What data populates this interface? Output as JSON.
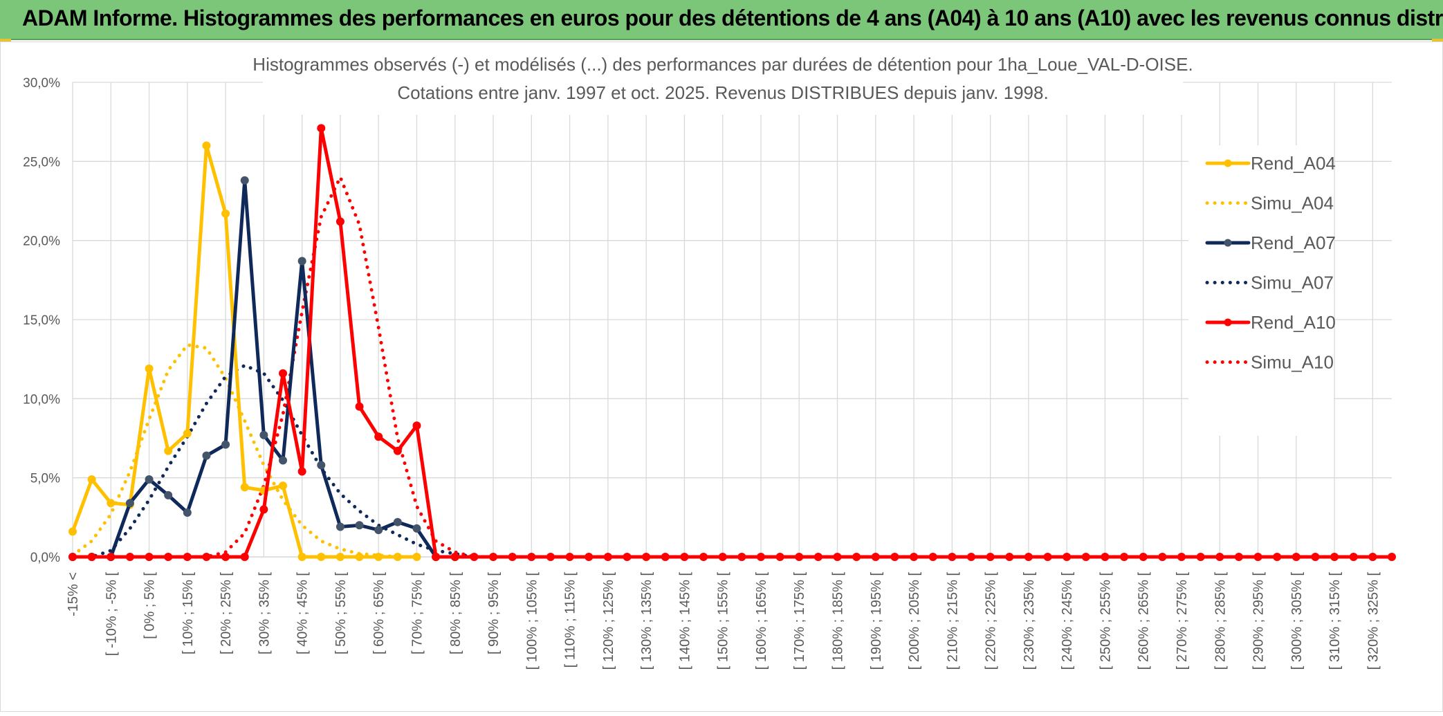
{
  "banner": {
    "title": "ADAM Informe. Histogrammes des performances en euros pour des détentions de 4 ans (A04) à 10 ans (A10) avec les revenus connus distribués"
  },
  "chart_data": {
    "type": "line",
    "title_lines": [
      "Histogrammes observés (-) et modélisés (...) des performances par durées de détention pour 1ha_Loue_VAL-D-OISE.",
      "Cotations entre janv. 1997 et oct. 2025. Revenus DISTRIBUES depuis janv. 1998."
    ],
    "ylim": [
      0,
      30
    ],
    "y_ticks": [
      "0,0%",
      "5,0%",
      "10,0%",
      "15,0%",
      "20,0%",
      "25,0%",
      "30,0%"
    ],
    "x_tick_labels": [
      "-15% <",
      "[ -10% ; -5% [",
      "[ 0% ; 5% [",
      "[ 10% ; 15% [",
      "[ 20% ; 25% [",
      "[ 30% ; 35% [",
      "[ 40% ; 45% [",
      "[ 50% ; 55% [",
      "[ 60% ; 65% [",
      "[ 70% ; 75% [",
      "[ 80% ; 85% [",
      "[ 90% ; 95% [",
      "[ 100% ; 105% [",
      "[ 110% ; 115% [",
      "[ 120% ; 125% [",
      "[ 130% ; 135% [",
      "[ 140% ; 145% [",
      "[ 150% ; 155% [",
      "[ 160% ; 165% [",
      "[ 170% ; 175% [",
      "[ 180% ; 185% [",
      "[ 190% ; 195% [",
      "[ 200% ; 205% [",
      "[ 210% ; 215% [",
      "[ 220% ; 225% [",
      "[ 230% ; 235% [",
      "[ 240% ; 245% [",
      "[ 250% ; 255% [",
      "[ 260% ; 265% [",
      "[ 270% ; 275% [",
      "[ 280% ; 285% [",
      "[ 290% ; 295% [",
      "[ 300% ; 305% [",
      "[ 310% ; 315% [",
      "[ 320% ; 325% ["
    ],
    "n_bins": 70,
    "legend_position": "right",
    "grid": true,
    "series": [
      {
        "name": "Rend_A04",
        "style": "solid",
        "markers": true,
        "color": "#ffc000",
        "values": [
          1.6,
          4.9,
          3.4,
          3.3,
          11.9,
          6.7,
          7.8,
          26.0,
          21.7,
          4.4,
          4.2,
          4.5,
          0.0,
          0.0,
          0.0,
          0.0,
          0.0,
          0.0,
          0.0
        ]
      },
      {
        "name": "Simu_A04",
        "style": "dotted",
        "markers": false,
        "color": "#ffc000",
        "values": [
          0.1,
          1.0,
          2.7,
          5.4,
          8.7,
          11.8,
          13.4,
          13.2,
          11.3,
          8.6,
          5.8,
          3.6,
          2.0,
          1.0,
          0.5,
          0.2,
          0.1,
          0.0,
          0.0
        ]
      },
      {
        "name": "Rend_A07",
        "style": "solid",
        "markers": true,
        "color": "#0f2a5a",
        "values": [
          0.0,
          0.0,
          0.0,
          3.4,
          4.9,
          3.9,
          2.8,
          6.4,
          7.1,
          23.8,
          7.7,
          6.1,
          18.7,
          5.8,
          1.9,
          2.0,
          1.7,
          2.2,
          1.8,
          0.0,
          0.0
        ]
      },
      {
        "name": "Simu_A07",
        "style": "dotted",
        "markers": false,
        "color": "#0f2a5a",
        "values": [
          0.0,
          0.0,
          0.4,
          1.8,
          3.6,
          5.7,
          7.6,
          9.7,
          11.4,
          12.1,
          11.6,
          9.9,
          7.7,
          5.6,
          4.0,
          2.9,
          2.0,
          1.4,
          0.8,
          0.4,
          0.2,
          0.0
        ]
      },
      {
        "name": "Rend_A10",
        "style": "solid",
        "markers": true,
        "color": "#ff0000",
        "values": [
          0.0,
          0.0,
          0.0,
          0.0,
          0.0,
          0.0,
          0.0,
          0.0,
          0.0,
          0.0,
          3.0,
          11.6,
          5.4,
          27.1,
          21.2,
          9.5,
          7.6,
          6.7,
          8.3,
          0.0,
          0.0,
          0.0,
          0.0,
          0.0,
          0.0,
          0.0,
          0.0,
          0.0,
          0.0,
          0.0,
          0.0,
          0.0,
          0.0,
          0.0,
          0.0,
          0.0,
          0.0,
          0.0,
          0.0,
          0.0,
          0.0,
          0.0,
          0.0,
          0.0,
          0.0,
          0.0,
          0.0,
          0.0,
          0.0,
          0.0,
          0.0,
          0.0,
          0.0,
          0.0,
          0.0,
          0.0,
          0.0,
          0.0,
          0.0,
          0.0,
          0.0,
          0.0,
          0.0,
          0.0,
          0.0,
          0.0,
          0.0,
          0.0,
          0.0,
          0.0
        ]
      },
      {
        "name": "Simu_A10",
        "style": "dotted",
        "markers": false,
        "color": "#ff0000",
        "values": [
          0.0,
          0.0,
          0.0,
          0.0,
          0.0,
          0.0,
          0.0,
          0.0,
          0.3,
          1.5,
          4.5,
          9.0,
          15.5,
          21.5,
          24.0,
          21.0,
          14.5,
          7.5,
          3.2,
          1.0,
          0.3,
          0.0
        ]
      }
    ]
  }
}
